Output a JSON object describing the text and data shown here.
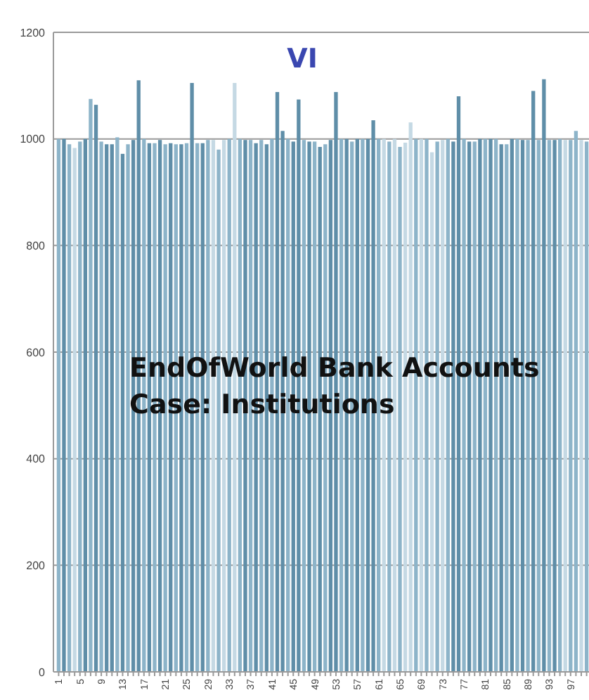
{
  "chart_data": {
    "type": "bar",
    "title": "VI",
    "annotations": [
      "EndOfWorld Bank Accounts",
      "Case: Institutions"
    ],
    "categories": [
      "1",
      null,
      null,
      null,
      "5",
      null,
      null,
      null,
      "9",
      null,
      null,
      null,
      "13",
      null,
      null,
      null,
      "17",
      null,
      null,
      null,
      "21",
      null,
      null,
      null,
      "25",
      null,
      null,
      null,
      "29",
      null,
      null,
      null,
      "33",
      null,
      null,
      null,
      "37",
      null,
      null,
      null,
      "41",
      null,
      null,
      null,
      "45",
      null,
      null,
      null,
      "49",
      null,
      null,
      null,
      "53",
      null,
      null,
      null,
      "57",
      null,
      null,
      null,
      "61",
      null,
      null,
      null,
      "65",
      null,
      null,
      null,
      "69",
      null,
      null,
      null,
      "73",
      null,
      null,
      null,
      "77",
      null,
      null,
      null,
      "81",
      null,
      null,
      null,
      "85",
      null,
      null,
      null,
      "89",
      null,
      null,
      null,
      "93",
      null,
      null,
      null,
      "97",
      null,
      null,
      null
    ],
    "values": [
      1000,
      1000,
      990,
      983,
      995,
      1000,
      1075,
      1064,
      995,
      990,
      990,
      1003,
      972,
      990,
      998,
      1110,
      1000,
      992,
      992,
      998,
      990,
      992,
      990,
      990,
      992,
      1105,
      992,
      992,
      998,
      998,
      980,
      998,
      1000,
      1105,
      1000,
      998,
      998,
      992,
      998,
      990,
      1000,
      1088,
      1015,
      1000,
      995,
      1074,
      998,
      995,
      995,
      985,
      990,
      998,
      1088,
      1000,
      1000,
      995,
      1000,
      1000,
      1000,
      1035,
      1000,
      1000,
      995,
      1000,
      985,
      993,
      1031,
      1000,
      1000,
      1000,
      975,
      995,
      998,
      1000,
      995,
      1080,
      1000,
      995,
      995,
      1000,
      1000,
      1000,
      1000,
      990,
      990,
      1000,
      1000,
      998,
      998,
      1090,
      998,
      1112,
      998,
      998,
      1000,
      998,
      998,
      1015,
      998,
      995
    ],
    "colors": [
      "#8db4c9",
      "#5f8ea8",
      "#8db4c9",
      "#c5d9e4",
      "#8db4c9",
      "#5f8ea8",
      "#8db4c9",
      "#5f8ea8",
      "#8db4c9",
      "#5f8ea8",
      "#5f8ea8",
      "#8db4c9",
      "#5f8ea8",
      "#8db4c9",
      "#5f8ea8",
      "#5f8ea8",
      "#8db4c9",
      "#5f8ea8",
      "#8db4c9",
      "#5f8ea8",
      "#8db4c9",
      "#5f8ea8",
      "#8db4c9",
      "#5f8ea8",
      "#8db4c9",
      "#5f8ea8",
      "#8db4c9",
      "#5f8ea8",
      "#8db4c9",
      "#c5d9e4",
      "#8db4c9",
      "#c5d9e4",
      "#8db4c9",
      "#c5d9e4",
      "#8db4c9",
      "#5f8ea8",
      "#8db4c9",
      "#5f8ea8",
      "#8db4c9",
      "#5f8ea8",
      "#8db4c9",
      "#5f8ea8",
      "#5f8ea8",
      "#8db4c9",
      "#5f8ea8",
      "#5f8ea8",
      "#8db4c9",
      "#5f8ea8",
      "#8db4c9",
      "#5f8ea8",
      "#8db4c9",
      "#5f8ea8",
      "#5f8ea8",
      "#8db4c9",
      "#5f8ea8",
      "#8db4c9",
      "#5f8ea8",
      "#8db4c9",
      "#5f8ea8",
      "#5f8ea8",
      "#8db4c9",
      "#c5d9e4",
      "#8db4c9",
      "#c5d9e4",
      "#8db4c9",
      "#c5d9e4",
      "#c5d9e4",
      "#8db4c9",
      "#c5d9e4",
      "#8db4c9",
      "#c5d9e4",
      "#8db4c9",
      "#c5d9e4",
      "#8db4c9",
      "#5f8ea8",
      "#5f8ea8",
      "#8db4c9",
      "#5f8ea8",
      "#8db4c9",
      "#5f8ea8",
      "#8db4c9",
      "#5f8ea8",
      "#8db4c9",
      "#5f8ea8",
      "#8db4c9",
      "#5f8ea8",
      "#8db4c9",
      "#5f8ea8",
      "#8db4c9",
      "#5f8ea8",
      "#8db4c9",
      "#5f8ea8",
      "#8db4c9",
      "#5f8ea8",
      "#8db4c9",
      "#c5d9e4",
      "#8db4c9",
      "#8db4c9",
      "#c5d9e4",
      "#8db4c9"
    ],
    "ylim": [
      0,
      1200
    ],
    "yticks": [
      0,
      200,
      400,
      600,
      800,
      1000,
      1200
    ],
    "grid": "y"
  }
}
